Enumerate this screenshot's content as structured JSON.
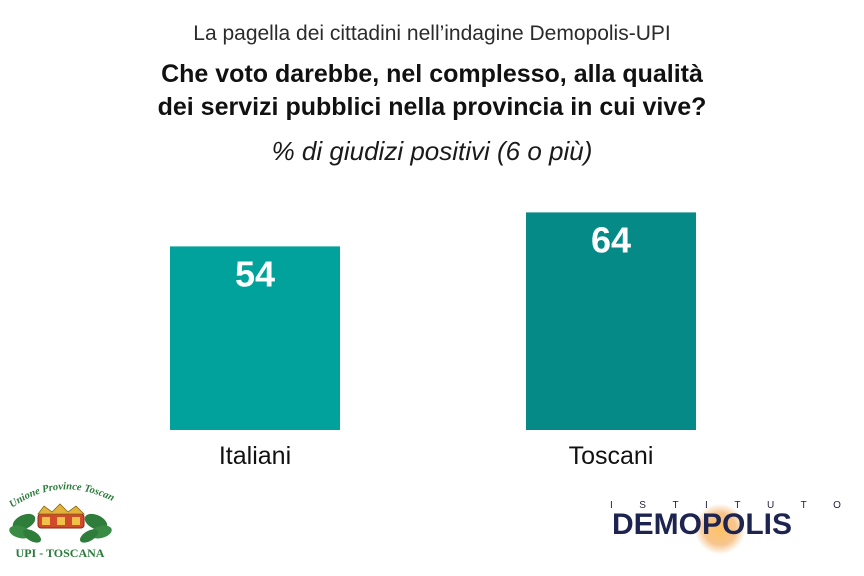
{
  "header": {
    "subtitle": "La pagella dei cittadini nell’indagine Demopolis-UPI",
    "question_line1": "Che voto darebbe, nel complesso, alla qualità",
    "question_line2": "dei servizi pubblici nella provincia in cui vive?",
    "measure": "% di giudizi positivi (6 o più)"
  },
  "chart_data": {
    "type": "bar",
    "title": "% di giudizi positivi (6 o più)",
    "categories": [
      "Italiani",
      "Toscani"
    ],
    "values": [
      54,
      64
    ],
    "ylim": [
      0,
      100
    ],
    "grid": false,
    "legend": "none",
    "colors": [
      "#00a29b",
      "#068a88"
    ]
  },
  "logos": {
    "upi_arc_text": "Unione Province Toscane",
    "upi_caption": "UPI - TOSCANA",
    "demopolis_top": "ISTITUTO",
    "demopolis_name": "DEMOPOLIS"
  }
}
